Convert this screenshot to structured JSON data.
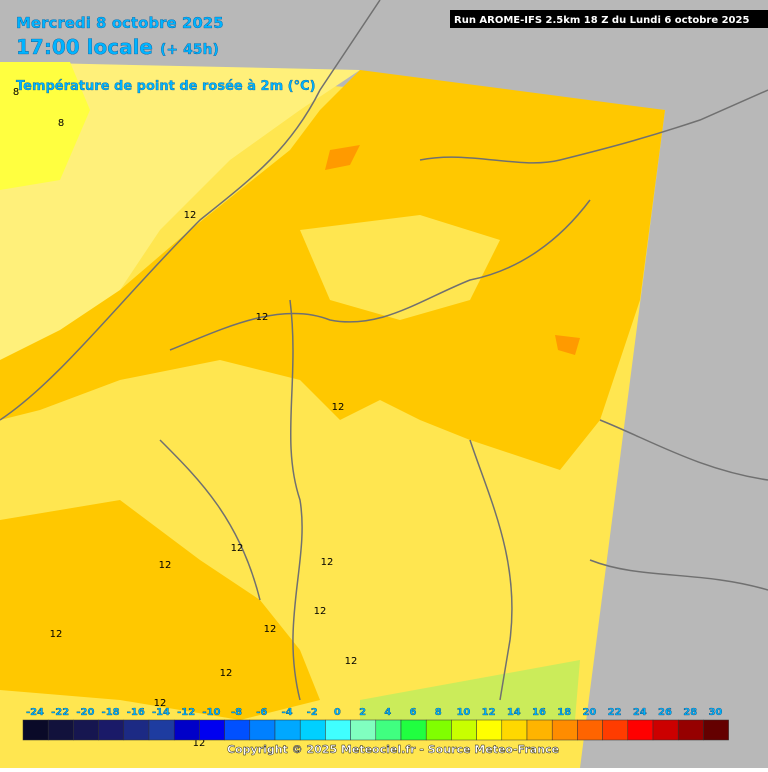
{
  "header": {
    "date": "Mercredi 8 octobre 2025",
    "time": "17:00 locale",
    "lead": "(+ 45h)",
    "parameter": "Température de point de rosée à 2m (°C)",
    "run": "Run AROME-IFS 2.5km 18 Z du Lundi 6 octobre 2025"
  },
  "map": {
    "contour_labels": [
      "8",
      "8",
      "12",
      "12",
      "12",
      "12",
      "12",
      "12",
      "12",
      "12",
      "12",
      "12",
      "12",
      "12",
      "12"
    ]
  },
  "legend": {
    "labels": [
      "-24",
      "-22",
      "-20",
      "-18",
      "-16",
      "-14",
      "-12",
      "-10",
      "-8",
      "-6",
      "-4",
      "-2",
      "0",
      "2",
      "4",
      "6",
      "8",
      "10",
      "12",
      "14",
      "16",
      "18",
      "20",
      "22",
      "24",
      "26",
      "28",
      "30"
    ],
    "colors": [
      "#0a0a28",
      "#12123c",
      "#161650",
      "#1a1a68",
      "#1c2a84",
      "#1e3ca0",
      "#0000c8",
      "#0000f0",
      "#0050ff",
      "#0080ff",
      "#00a8ff",
      "#00d0ff",
      "#40ffff",
      "#80ffc0",
      "#40ff80",
      "#20ff40",
      "#80ff00",
      "#c8ff00",
      "#ffff00",
      "#ffd800",
      "#ffb400",
      "#ff8c00",
      "#ff6400",
      "#ff3c00",
      "#ff0000",
      "#cc0000",
      "#960000",
      "#640000"
    ]
  },
  "footer": {
    "copyright": "Copyright © 2025 Meteociel.fr - Source Meteo-France"
  }
}
